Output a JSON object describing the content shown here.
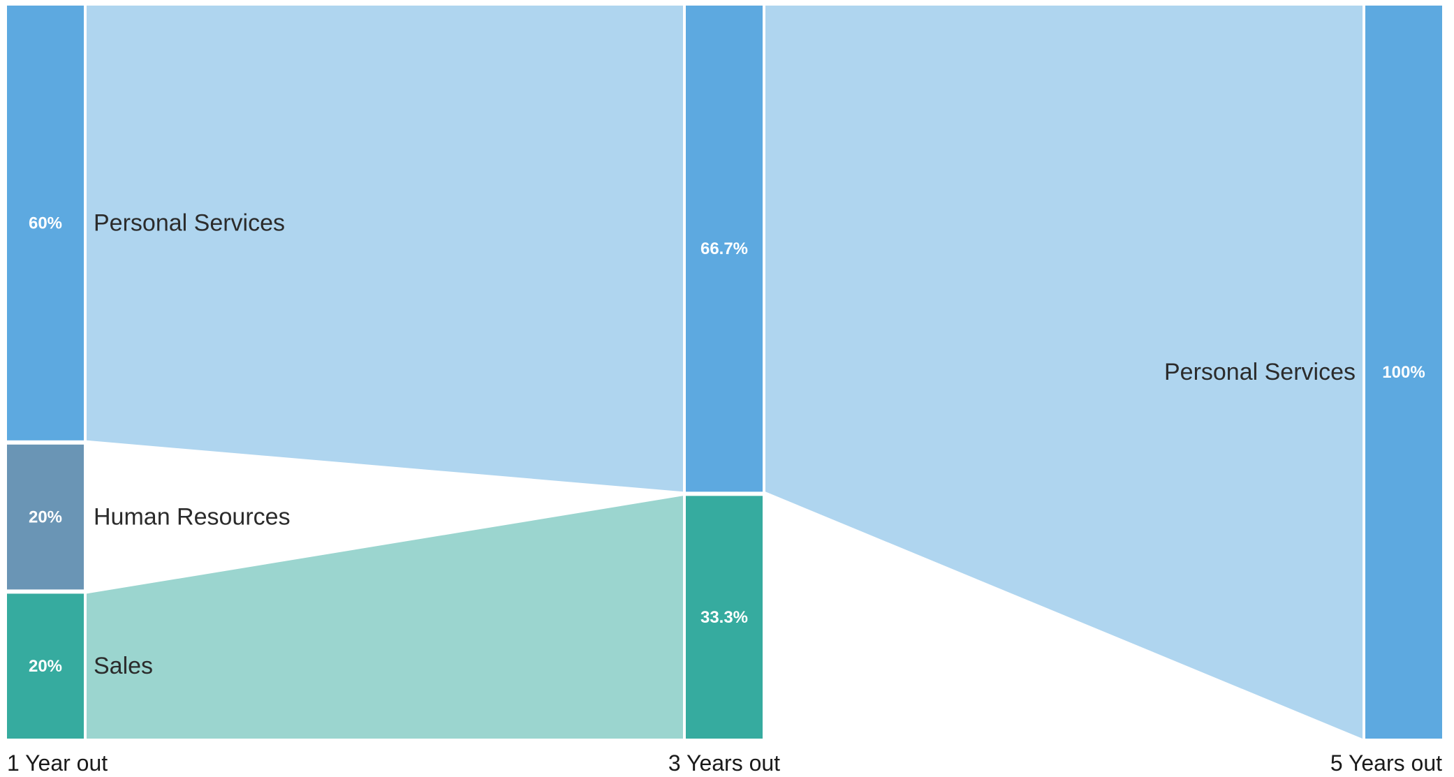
{
  "chart_data": {
    "type": "sankey",
    "stages": [
      "1 Year out",
      "3 Years out",
      "5 Years out"
    ],
    "nodes": [
      {
        "id": "y1_ps",
        "stage": 0,
        "label": "Personal Services",
        "value": 60,
        "value_label": "60%",
        "color": "#5DA9E0"
      },
      {
        "id": "y1_hr",
        "stage": 0,
        "label": "Human Resources",
        "value": 20,
        "value_label": "20%",
        "color": "#6A95B5"
      },
      {
        "id": "y1_sales",
        "stage": 0,
        "label": "Sales",
        "value": 20,
        "value_label": "20%",
        "color": "#36AB9F"
      },
      {
        "id": "y3_ps",
        "stage": 1,
        "label": "",
        "value": 66.7,
        "value_label": "66.7%",
        "color": "#5DA9E0"
      },
      {
        "id": "y3_sales",
        "stage": 1,
        "label": "",
        "value": 33.3,
        "value_label": "33.3%",
        "color": "#36AB9F"
      },
      {
        "id": "y5_ps",
        "stage": 2,
        "label": "Personal Services",
        "value": 100,
        "value_label": "100%",
        "color": "#5DA9E0"
      }
    ],
    "links": [
      {
        "source": "y1_ps",
        "target": "y3_ps",
        "color": "#AFD5EF"
      },
      {
        "source": "y1_sales",
        "target": "y3_sales",
        "color": "#9BD5CF"
      },
      {
        "source": "y3_ps",
        "target": "y5_ps",
        "color": "#AFD5EF"
      }
    ]
  }
}
